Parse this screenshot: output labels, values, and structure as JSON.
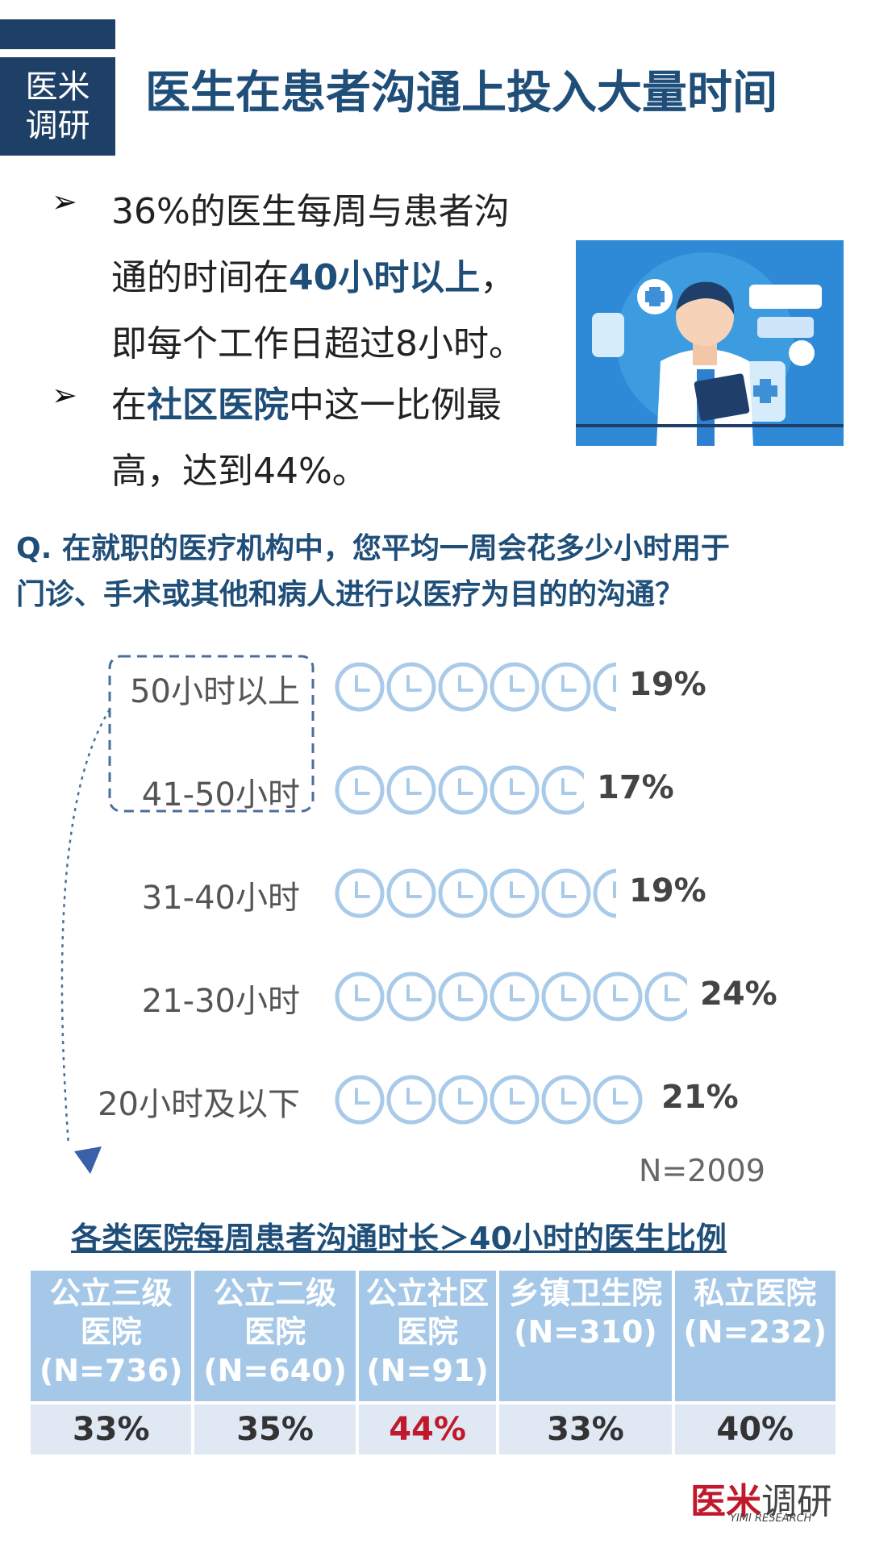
{
  "header": {
    "tag_line1": "医米",
    "tag_line2": "调研",
    "title": "医生在患者沟通上投入大量时间"
  },
  "bullets": [
    {
      "line1": "36%的医生每周与患者沟",
      "line2_pre": "通的时间在",
      "line2_bold": "40小时以上",
      "line2_post": "，",
      "line3": "即每个工作日超过8小时。"
    },
    {
      "line1_pre": "在",
      "line1_bold": "社区医院",
      "line1_post": "中这一比例最",
      "line2": "高，达到44%。"
    }
  ],
  "question": {
    "line1": "Q. 在就职的医疗机构中，您平均一周会花多少小时用于",
    "line2": "门诊、手术或其他和病人进行以医疗为目的的沟通？"
  },
  "chart_data": {
    "type": "bar",
    "categories": [
      "50小时以上",
      "41-50小时",
      "31-40小时",
      "21-30小时",
      "20小时及以下"
    ],
    "values": [
      19,
      17,
      19,
      24,
      21
    ],
    "value_labels": [
      "19%",
      "17%",
      "19%",
      "24%",
      "21%"
    ],
    "unit": "%",
    "marker": "clock-icon",
    "note": "N=2009"
  },
  "table": {
    "title": "各类医院每周患者沟通时长＞40小时的医生比例",
    "headers": [
      [
        "公立三级",
        "医院",
        "(N=736)"
      ],
      [
        "公立二级",
        "医院",
        "(N=640)"
      ],
      [
        "公立社区",
        "医院",
        "(N=91)"
      ],
      [
        "乡镇卫生院",
        "(N=310)",
        ""
      ],
      [
        "私立医院",
        "(N=232)",
        ""
      ]
    ],
    "values": [
      "33%",
      "35%",
      "44%",
      "33%",
      "40%"
    ],
    "highlight_index": 2
  },
  "brand": {
    "main_red": "医米",
    "main": "调研",
    "sub": "YIMI RESEARCH"
  },
  "colors": {
    "navy": "#1f4e79",
    "clock": "#a9cbe9",
    "table_header": "#a6c8e8",
    "table_cell": "#dfe8f3",
    "highlight": "#c0192b"
  }
}
